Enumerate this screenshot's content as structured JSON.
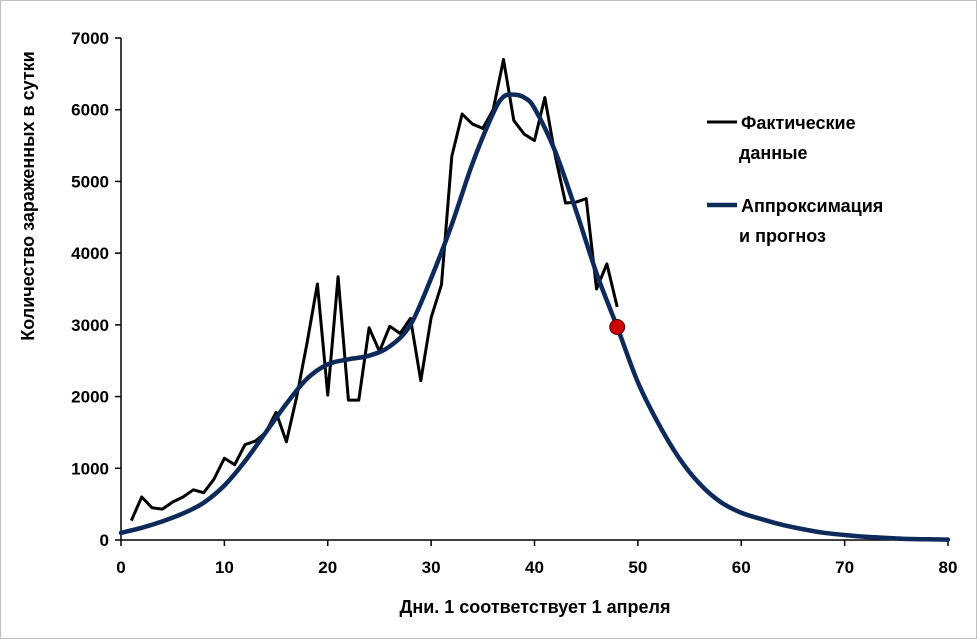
{
  "chart_data": {
    "type": "line",
    "title": "",
    "xlabel": "Дни. 1 соответствует 1 апреля",
    "ylabel": "Количество зараженных в сутки",
    "xlim": [
      0,
      80
    ],
    "ylim": [
      0,
      7000
    ],
    "xticks": [
      0,
      10,
      20,
      30,
      40,
      50,
      60,
      70,
      80
    ],
    "yticks": [
      0,
      1000,
      2000,
      3000,
      4000,
      5000,
      6000,
      7000
    ],
    "grid": false,
    "legend_position": "right",
    "series": [
      {
        "name": "Фактические данные",
        "color": "#000000",
        "x": [
          1,
          2,
          3,
          4,
          5,
          6,
          7,
          8,
          9,
          10,
          11,
          12,
          13,
          14,
          15,
          16,
          17,
          18,
          19,
          20,
          21,
          22,
          23,
          24,
          25,
          26,
          27,
          28,
          29,
          30,
          31,
          32,
          33,
          34,
          35,
          36,
          37,
          38,
          39,
          40,
          41,
          42,
          43,
          44,
          45,
          46,
          47,
          48
        ],
        "y": [
          270,
          600,
          450,
          430,
          530,
          600,
          700,
          660,
          850,
          1140,
          1050,
          1330,
          1380,
          1500,
          1780,
          1370,
          2000,
          2750,
          3570,
          2020,
          3670,
          1950,
          1950,
          2960,
          2630,
          2980,
          2880,
          3090,
          2220,
          3100,
          3560,
          5350,
          5940,
          5800,
          5740,
          6000,
          6700,
          5850,
          5660,
          5570,
          6170,
          5360,
          4700,
          4710,
          4760,
          3500,
          3850,
          3250
        ]
      },
      {
        "name": "Аппроксимация и прогноз",
        "color": "#0d2a5a",
        "x": [
          0,
          2,
          4,
          6,
          8,
          10,
          12,
          14,
          16,
          18,
          20,
          22,
          24,
          26,
          28,
          30,
          32,
          34,
          36,
          37,
          38,
          39,
          40,
          42,
          44,
          46,
          48,
          50,
          52,
          54,
          56,
          58,
          60,
          62,
          64,
          66,
          68,
          70,
          72,
          74,
          76,
          78,
          80
        ],
        "y": [
          100,
          170,
          260,
          370,
          520,
          760,
          1100,
          1500,
          1900,
          2250,
          2450,
          2520,
          2570,
          2700,
          3000,
          3650,
          4400,
          5250,
          5950,
          6180,
          6210,
          6170,
          6020,
          5420,
          4600,
          3720,
          2970,
          2200,
          1620,
          1140,
          780,
          530,
          380,
          290,
          210,
          150,
          100,
          70,
          45,
          30,
          15,
          10,
          5
        ]
      }
    ],
    "marker": {
      "x": 48,
      "y": 2970,
      "color": "#cc0000"
    },
    "legend": [
      {
        "line1": "Фактические",
        "line2": "данные"
      },
      {
        "line1": "Аппроксимация",
        "line2": "и прогноз"
      }
    ]
  }
}
